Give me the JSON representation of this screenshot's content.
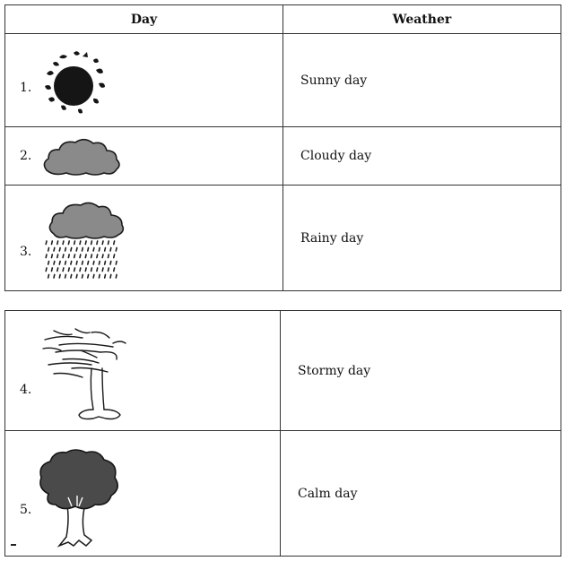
{
  "table1": {
    "headers": {
      "day": "Day",
      "weather": "Weather"
    },
    "rows": [
      {
        "number": "1.",
        "icon": "sun-icon",
        "weather": "Sunny day"
      },
      {
        "number": "2.",
        "icon": "cloud-icon",
        "weather": "Cloudy day"
      },
      {
        "number": "3.",
        "icon": "rain-cloud-icon",
        "weather": "Rainy day"
      }
    ]
  },
  "table2": {
    "rows": [
      {
        "number": "4.",
        "icon": "windblown-tree-icon",
        "weather": "Stormy day"
      },
      {
        "number": "5.",
        "icon": "tree-icon",
        "weather": "Calm day"
      }
    ]
  }
}
